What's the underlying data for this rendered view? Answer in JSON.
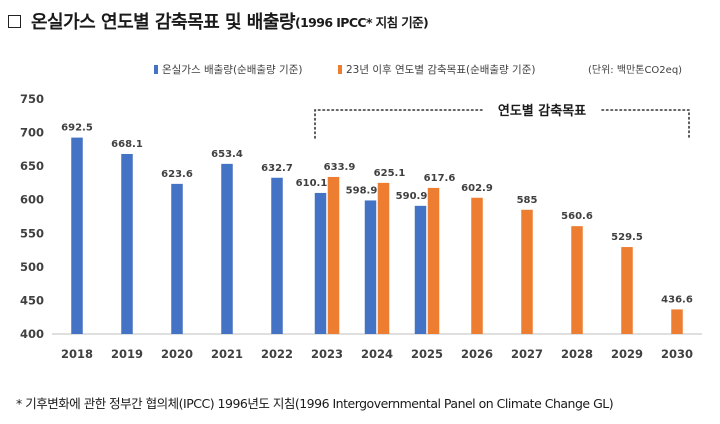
{
  "header": {
    "title": "온실가스 연도별 감축목표 및 배출량",
    "subtitle": "(1996 IPCC* 지침 기준)"
  },
  "footnote": "* 기후변화에 관한 정부간 협의체(IPCC) 1996년도 지침(1996 Intergovernmental Panel on Climate Change GL)",
  "colors": {
    "emissions": "#4472c4",
    "target": "#ed7d31",
    "bracket": "#333333"
  },
  "chart_data": {
    "type": "bar",
    "categories": [
      "2018",
      "2019",
      "2020",
      "2021",
      "2022",
      "2023",
      "2024",
      "2025",
      "2026",
      "2027",
      "2028",
      "2029",
      "2030"
    ],
    "series": [
      {
        "name": "온실가스 배출량(순배출량 기준)",
        "values": [
          692.5,
          668.1,
          623.6,
          653.4,
          632.7,
          610.1,
          598.9,
          590.9,
          null,
          null,
          null,
          null,
          null
        ]
      },
      {
        "name": "23년 이후 연도별 감축목표(순배출량 기준)",
        "values": [
          null,
          null,
          null,
          null,
          null,
          633.9,
          625.1,
          617.6,
          602.9,
          585,
          560.6,
          529.5,
          436.6
        ]
      }
    ],
    "value_labels": [
      [
        "692.5",
        "668.1",
        "623.6",
        "653.4",
        "632.7",
        "610.1",
        "598.9",
        "590.9",
        null,
        null,
        null,
        null,
        null
      ],
      [
        null,
        null,
        null,
        null,
        null,
        "633.9",
        "625.1",
        "617.6",
        "602.9",
        "585",
        "560.6",
        "529.5",
        "436.6"
      ]
    ],
    "unit_note": "(단위: 백만톤CO2eq)",
    "annotation": "연도별 감축목표",
    "annotation_years": [
      "2023",
      "2030"
    ],
    "ylim": [
      400,
      750
    ],
    "yticks": [
      400,
      450,
      500,
      550,
      600,
      650,
      700,
      750
    ],
    "grid": false,
    "legend_position": "top"
  }
}
